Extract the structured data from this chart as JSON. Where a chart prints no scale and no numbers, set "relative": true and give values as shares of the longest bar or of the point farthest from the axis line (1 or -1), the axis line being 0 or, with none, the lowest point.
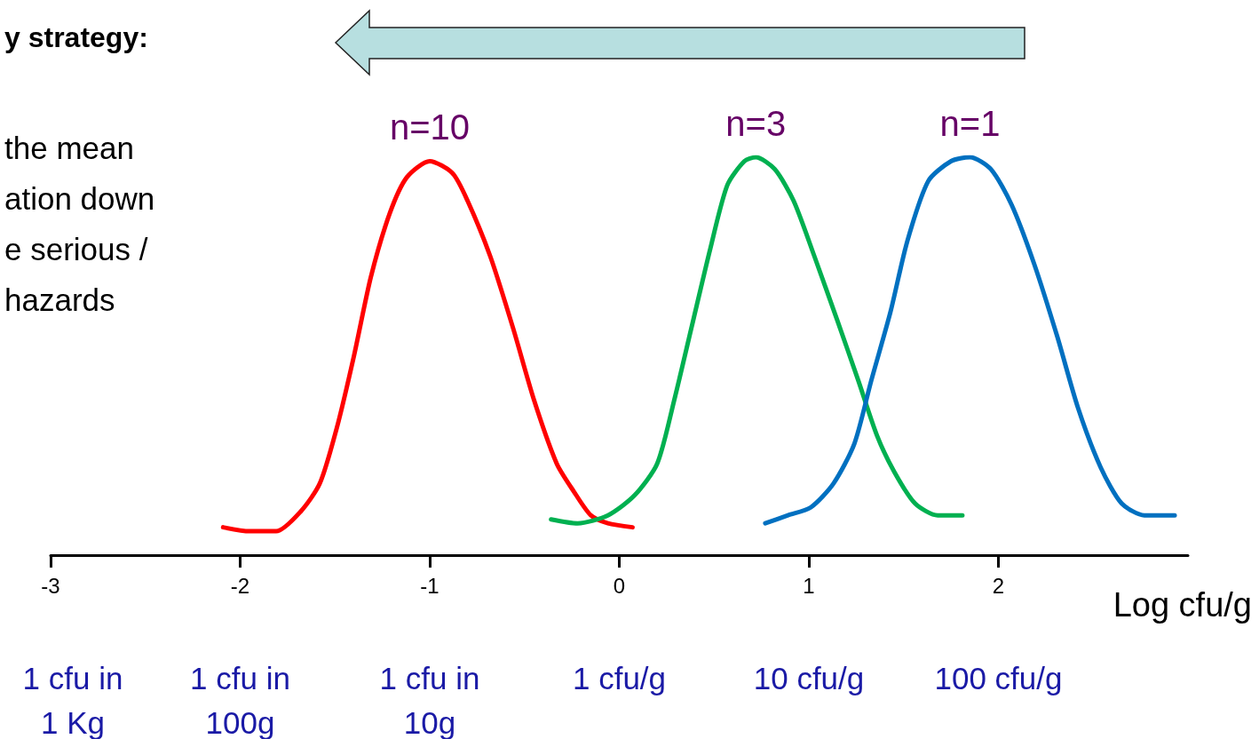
{
  "chart_data": {
    "type": "line",
    "relative": true,
    "title": "y strategy:",
    "xlabel": "Log cfu/g",
    "xlim": [
      -3,
      3
    ],
    "xticks": [
      -3,
      -2,
      -1,
      0,
      1,
      2
    ],
    "series": [
      {
        "name": "n=10",
        "color": "#ff0000",
        "x": [
          -2.09,
          -1.95,
          -1.81,
          -1.68,
          -1.58,
          -1.49,
          -1.4,
          -1.31,
          -1.21,
          -1.12,
          -1.0,
          -0.88,
          -0.8,
          -0.68,
          -0.56,
          -0.45,
          -0.33,
          -0.24,
          -0.15,
          -0.06,
          0.07
        ],
        "values": [
          0.07,
          0.06,
          0.06,
          0.11,
          0.18,
          0.32,
          0.5,
          0.7,
          0.86,
          0.95,
          0.99,
          0.96,
          0.89,
          0.75,
          0.57,
          0.39,
          0.23,
          0.16,
          0.1,
          0.08,
          0.07
        ]
      },
      {
        "name": "n=3",
        "color": "#00b050",
        "x": [
          -0.36,
          -0.22,
          -0.06,
          0.08,
          0.2,
          0.29,
          0.38,
          0.48,
          0.57,
          0.66,
          0.72,
          0.82,
          0.92,
          1.03,
          1.15,
          1.26,
          1.36,
          1.45,
          1.56,
          1.68,
          1.81
        ],
        "values": [
          0.09,
          0.08,
          0.1,
          0.15,
          0.23,
          0.39,
          0.57,
          0.77,
          0.93,
          0.99,
          1,
          0.97,
          0.89,
          0.75,
          0.59,
          0.44,
          0.3,
          0.21,
          0.13,
          0.1,
          0.1
        ]
      },
      {
        "name": "n=1",
        "color": "#0070c0",
        "x": [
          0.77,
          0.89,
          1.01,
          1.13,
          1.24,
          1.33,
          1.43,
          1.52,
          1.63,
          1.75,
          1.85,
          1.96,
          2.07,
          2.19,
          2.31,
          2.42,
          2.54,
          2.65,
          2.77,
          2.86,
          2.93
        ],
        "values": [
          0.08,
          0.1,
          0.12,
          0.18,
          0.28,
          0.44,
          0.61,
          0.79,
          0.94,
          0.99,
          1,
          0.97,
          0.88,
          0.73,
          0.55,
          0.37,
          0.22,
          0.13,
          0.1,
          0.1,
          0.1
        ]
      }
    ],
    "annotations": [
      "the mean\nation down\ne serious /\nhazards",
      "1 cfu in\n1 Kg",
      "1 cfu in\n100g",
      "1 cfu in\n10g",
      "1 cfu/g",
      "10 cfu/g",
      "100 cfu/g"
    ],
    "grid": false,
    "legend": false,
    "marker": "none",
    "line_style": "solid"
  }
}
